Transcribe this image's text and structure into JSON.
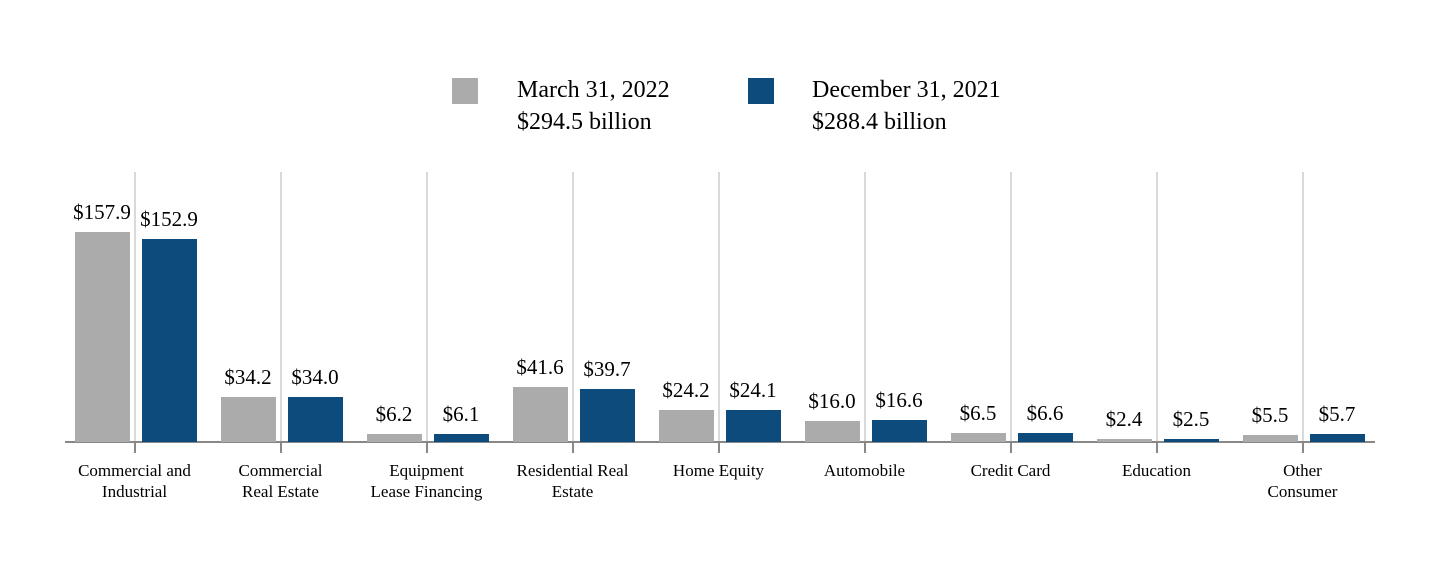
{
  "chart_data": {
    "type": "bar",
    "title": "",
    "xlabel": "",
    "ylabel": "",
    "value_prefix": "$",
    "value_unit": "billion",
    "ylim": [
      0,
      165
    ],
    "grid": "vertical-gridline-per-category",
    "legend_position": "top-center",
    "categories": [
      "Commercial and\nIndustrial",
      "Commercial\nReal Estate",
      "Equipment\nLease Financing",
      "Residential Real\nEstate",
      "Home Equity",
      "Automobile",
      "Credit Card",
      "Education",
      "Other\nConsumer"
    ],
    "series": [
      {
        "name": "March 31, 2022",
        "total_label": "$294.5 billion",
        "color": "#ABABAB",
        "values": [
          157.9,
          34.2,
          6.2,
          41.6,
          24.2,
          16.0,
          6.5,
          2.4,
          5.5
        ]
      },
      {
        "name": "December 31, 2021",
        "total_label": "$288.4 billion",
        "color": "#0E4B7D",
        "values": [
          152.9,
          34.0,
          6.1,
          39.7,
          24.1,
          16.6,
          6.6,
          2.5,
          5.7
        ]
      }
    ]
  },
  "colors": {
    "background": "#FFFFFF",
    "gridline": "#D9D9D9",
    "axis": "#888888",
    "text": "#000000"
  }
}
